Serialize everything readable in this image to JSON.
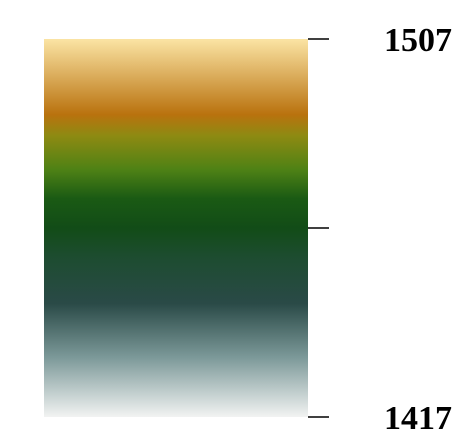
{
  "chart_data": {
    "type": "heatmap",
    "colorbar": {
      "min": 1417,
      "max": 1507,
      "ticks": [
        {
          "value": 1507,
          "label": "1507"
        },
        {
          "value": 1462,
          "label": ""
        },
        {
          "value": 1417,
          "label": "1417"
        }
      ],
      "colormap_stops": [
        {
          "value": 1507,
          "color": "#fbe4a4"
        },
        {
          "value": 1489,
          "color": "#b9720e"
        },
        {
          "value": 1484,
          "color": "#8e8a12"
        },
        {
          "value": 1476,
          "color": "#4f8215"
        },
        {
          "value": 1469,
          "color": "#1a5a14"
        },
        {
          "value": 1462,
          "color": "#124c17"
        },
        {
          "value": 1455,
          "color": "#1d4c30"
        },
        {
          "value": 1444,
          "color": "#2a4a47"
        },
        {
          "value": 1431,
          "color": "#7d9a9a"
        },
        {
          "value": 1417,
          "color": "#f2f3f2"
        }
      ]
    }
  }
}
